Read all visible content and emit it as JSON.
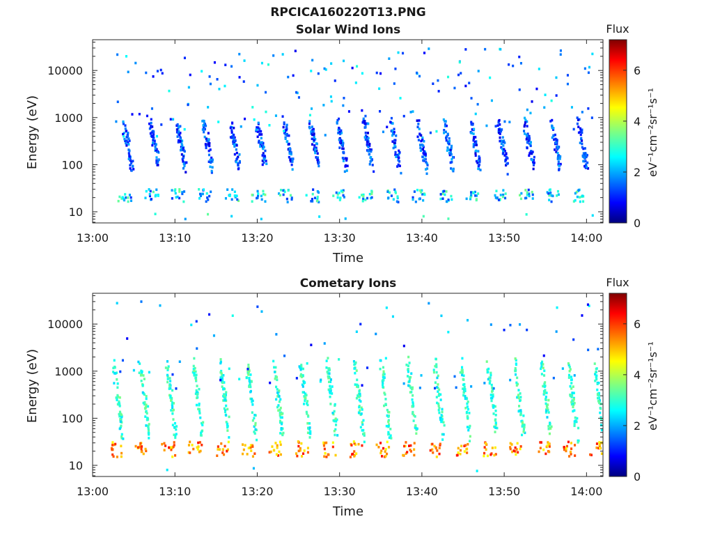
{
  "figure_title": "RPCICA160220T13.PNG",
  "colors": {
    "background": "#ffffff",
    "axis": "#262626",
    "colormap": [
      "#00007f",
      "#0000ff",
      "#0080ff",
      "#00ffff",
      "#80ff80",
      "#ffff00",
      "#ff8000",
      "#ff0000",
      "#7f0000"
    ]
  },
  "chart_data": [
    {
      "type": "heatmap",
      "title": "Solar Wind Ions",
      "xlabel": "Time",
      "ylabel": "Energy (eV)",
      "yscale": "log",
      "xticks": [
        "13:00",
        "13:10",
        "13:20",
        "13:30",
        "13:40",
        "13:50",
        "14:00"
      ],
      "yticks": [
        "10",
        "100",
        "1000",
        "10000"
      ],
      "colorbar": {
        "label": "Flux",
        "unit": "eV⁻¹cm⁻²sr⁻¹s⁻¹",
        "ticks": [
          "0",
          "2",
          "4",
          "6"
        ],
        "range": [
          0,
          7.2
        ]
      },
      "pattern": {
        "sweep_period_min": 3.25,
        "first_sweep_min": 3.6,
        "core_energy_eV": [
          90,
          750
        ],
        "core_flux": [
          0.6,
          2.2
        ],
        "low_band_eV": [
          16,
          30
        ],
        "low_band_flux": [
          1.2,
          3.6
        ],
        "scatter_density": 0.85
      }
    },
    {
      "type": "heatmap",
      "title": "Cometary Ions",
      "xlabel": "Time",
      "ylabel": "Energy (eV)",
      "yscale": "log",
      "xticks": [
        "13:00",
        "13:10",
        "13:20",
        "13:30",
        "13:40",
        "13:50",
        "14:00"
      ],
      "yticks": [
        "10",
        "100",
        "1000",
        "10000"
      ],
      "colorbar": {
        "label": "Flux",
        "unit": "eV⁻¹cm⁻²sr⁻¹s⁻¹",
        "ticks": [
          "0",
          "2",
          "4",
          "6"
        ],
        "range": [
          0,
          7.2
        ]
      },
      "pattern": {
        "sweep_period_min": 3.25,
        "first_sweep_min": 2.4,
        "core_energy_eV": [
          45,
          1400
        ],
        "core_flux": [
          2.4,
          3.6
        ],
        "low_band_eV": [
          15,
          32
        ],
        "low_band_flux": [
          4.4,
          6.3
        ],
        "scatter_density": 0.35
      }
    }
  ]
}
